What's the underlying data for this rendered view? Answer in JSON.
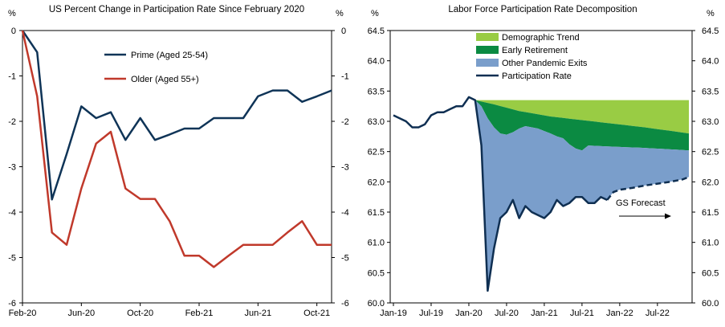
{
  "chart_data": [
    {
      "type": "line",
      "title": "US Percent Change in Participation Rate Since February 2020",
      "ylabel_left": "%",
      "ylabel_right": "%",
      "ylim": [
        -6,
        0
      ],
      "yticks": [
        0,
        -1,
        -2,
        -3,
        -4,
        -5,
        -6
      ],
      "ytick_labels": [
        "0",
        "-1",
        "-2",
        "-3",
        "-4",
        "-5",
        "-6"
      ],
      "x_tick_labels": [
        "Feb-20",
        "Jun-20",
        "Oct-20",
        "Feb-21",
        "Jun-21",
        "Oct-21"
      ],
      "x_tick_index": [
        0,
        4,
        8,
        12,
        16,
        20
      ],
      "x_count": 22,
      "legend_position": "top-left (inside plot)",
      "grid": false,
      "series": [
        {
          "name": "Prime (Aged 25-54)",
          "color": "#0f3457",
          "values": [
            0,
            -0.48,
            -3.72,
            -2.72,
            -1.67,
            -1.93,
            -1.8,
            -2.41,
            -1.93,
            -2.41,
            -2.29,
            -2.16,
            -2.16,
            -1.93,
            -1.93,
            -1.93,
            -1.45,
            -1.32,
            -1.32,
            -1.57,
            -1.45,
            -1.32
          ]
        },
        {
          "name": "Older (Aged 55+)",
          "color": "#c0392b",
          "values": [
            0,
            -1.45,
            -4.45,
            -4.72,
            -3.48,
            -2.49,
            -2.23,
            -3.48,
            -3.71,
            -3.71,
            -4.2,
            -4.96,
            -4.96,
            -5.21,
            -4.96,
            -4.72,
            -4.72,
            -4.72,
            -4.45,
            -4.2,
            -4.72,
            -4.72
          ]
        }
      ]
    },
    {
      "type": "area",
      "title": "Labor Force Participation Rate Decomposition",
      "ylabel_left": "%",
      "ylabel_right": "%",
      "ylim": [
        60.0,
        64.5
      ],
      "yticks": [
        64.5,
        64.0,
        63.5,
        63.0,
        62.5,
        62.0,
        61.5,
        61.0,
        60.5,
        60.0
      ],
      "ytick_labels": [
        "64.5",
        "64.0",
        "63.5",
        "63.0",
        "62.5",
        "62.0",
        "61.5",
        "61.0",
        "60.5",
        "60.0"
      ],
      "x_tick_labels": [
        "Jan-19",
        "Jul-19",
        "Jan-20",
        "Jul-20",
        "Jan-21",
        "Jul-21",
        "Jan-22",
        "Jul-22"
      ],
      "x_tick_index": [
        0,
        6,
        12,
        18,
        24,
        30,
        36,
        42
      ],
      "x_count": 48,
      "legend_position": "top-center (inside plot)",
      "grid": false,
      "annotation": "GS Forecast",
      "series": [
        {
          "name": "Demographic Trend",
          "color": "#99cc44",
          "type": "area"
        },
        {
          "name": "Early Retirement",
          "color": "#0b8a42",
          "type": "area"
        },
        {
          "name": "Other Pandemic Exits",
          "color": "#7a9ecb",
          "type": "area"
        },
        {
          "name": "Participation Rate",
          "color": "#0f2f52",
          "type": "line"
        }
      ],
      "participation_rate": {
        "x_index": [
          0,
          1,
          2,
          3,
          4,
          5,
          6,
          7,
          8,
          9,
          10,
          11,
          12,
          13,
          14,
          15,
          16,
          17,
          18,
          19,
          20,
          21,
          22,
          23,
          24,
          25,
          26,
          27,
          28,
          29,
          30,
          31,
          32,
          33,
          34
        ],
        "values": [
          63.1,
          63.05,
          63.0,
          62.9,
          62.9,
          62.95,
          63.1,
          63.15,
          63.15,
          63.2,
          63.25,
          63.25,
          63.4,
          63.35,
          62.6,
          60.2,
          60.9,
          61.4,
          61.5,
          61.7,
          61.4,
          61.6,
          61.5,
          61.45,
          61.4,
          61.5,
          61.7,
          61.6,
          61.65,
          61.75,
          61.75,
          61.65,
          61.65,
          61.75,
          61.7
        ]
      },
      "gs_forecast": {
        "x_index": [
          34,
          35,
          36,
          38,
          40,
          42,
          44,
          46,
          47
        ],
        "values": [
          61.7,
          61.83,
          61.87,
          61.9,
          61.94,
          61.97,
          62.0,
          62.04,
          62.08
        ]
      },
      "demographic_trend_top": {
        "x_index": [
          13,
          47
        ],
        "values": [
          63.35,
          63.35
        ]
      },
      "demographic_trend_bottom": {
        "x_index": [
          13,
          16,
          20,
          25,
          30,
          35,
          40,
          47
        ],
        "values": [
          63.35,
          63.28,
          63.17,
          63.08,
          63.02,
          62.96,
          62.9,
          62.8
        ]
      },
      "early_retirement_bottom": {
        "x_index": [
          13,
          14,
          15,
          16,
          17,
          18,
          19,
          20,
          21,
          22,
          23,
          24,
          25,
          26,
          27,
          28,
          29,
          30,
          31,
          35,
          40,
          47
        ],
        "values": [
          63.35,
          63.25,
          63.05,
          62.9,
          62.8,
          62.78,
          62.82,
          62.88,
          62.92,
          62.9,
          62.88,
          62.84,
          62.8,
          62.75,
          62.72,
          62.62,
          62.55,
          62.52,
          62.6,
          62.58,
          62.56,
          62.52
        ]
      }
    }
  ]
}
